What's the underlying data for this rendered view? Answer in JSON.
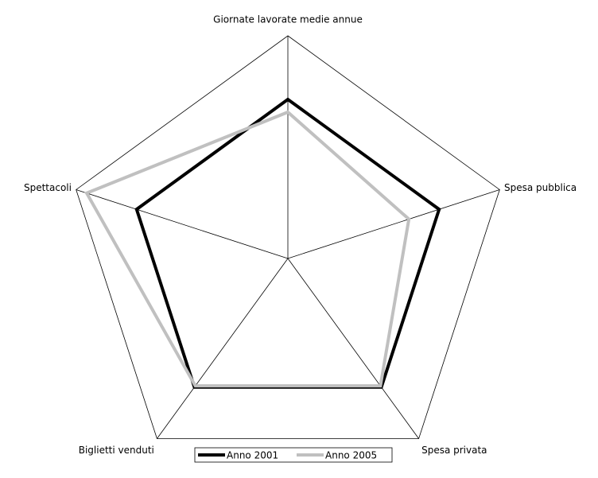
{
  "chart_data": {
    "type": "radar",
    "categories": [
      "Giornate lavorate medie annue",
      "Spesa pubblica",
      "Spesa privata",
      "Biglietti venduti",
      "Spettacoli"
    ],
    "series": [
      {
        "name": "Anno 2001",
        "color": "#000000",
        "values": [
          100,
          100,
          100,
          100,
          100
        ]
      },
      {
        "name": "Anno 2005",
        "color": "#c0c0c0",
        "values": [
          92,
          80,
          99,
          99,
          133
        ]
      }
    ],
    "ylim": [
      0,
      140
    ],
    "yticks": [
      100,
      140
    ],
    "grid": true,
    "legend": "bottom"
  }
}
